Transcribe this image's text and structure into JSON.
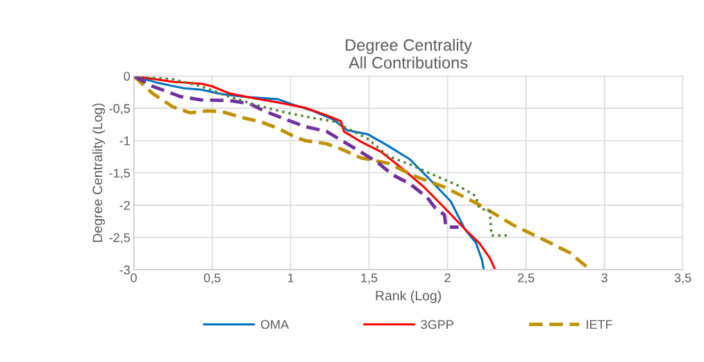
{
  "chart_data": {
    "type": "line",
    "title": "Degree Centrality\nAll Contributions",
    "xlabel": "Rank (Log)",
    "ylabel": "Degree Centrality (Log)",
    "xlim": [
      0,
      3.5
    ],
    "ylim": [
      -3,
      0
    ],
    "xticks": [
      0,
      {
        "value": 0.5,
        "label": "0,5"
      },
      1,
      {
        "value": 1.5,
        "label": "1,5"
      },
      2,
      {
        "value": 2.5,
        "label": "2,5"
      },
      3,
      {
        "value": 3.5,
        "label": "3,5"
      }
    ],
    "yticks": [
      {
        "value": -3,
        "label": "-3"
      },
      {
        "value": -2.5,
        "label": "-2,5"
      },
      {
        "value": -2,
        "label": "-2"
      },
      {
        "value": -1.5,
        "label": "-1,5"
      },
      {
        "value": -1,
        "label": "-1"
      },
      {
        "value": -0.5,
        "label": "-0,5"
      },
      0
    ],
    "grid": true,
    "legend": "bottom",
    "marker": "none",
    "series": [
      {
        "name": "OMA",
        "color": "#0070c0",
        "line_style": "solid",
        "x": [
          0,
          0.16,
          0.32,
          0.43,
          0.56,
          0.7,
          0.92,
          1.0,
          1.14,
          1.27,
          1.36,
          1.49,
          1.62,
          1.76,
          1.89,
          2.02,
          2.11,
          2.18,
          2.22,
          2.23
        ],
        "values": [
          0,
          -0.11,
          -0.19,
          -0.21,
          -0.28,
          -0.32,
          -0.36,
          -0.43,
          -0.54,
          -0.67,
          -0.84,
          -0.9,
          -1.08,
          -1.29,
          -1.61,
          -1.94,
          -2.37,
          -2.58,
          -2.85,
          -2.99
        ]
      },
      {
        "name": "3GPP",
        "color": "#ff0000",
        "line_style": "solid",
        "x": [
          0,
          0.25,
          0.43,
          0.5,
          0.61,
          0.78,
          0.92,
          1.09,
          1.23,
          1.32,
          1.34,
          1.45,
          1.58,
          1.71,
          1.85,
          1.98,
          2.11,
          2.2,
          2.27,
          2.3
        ],
        "values": [
          0,
          -0.09,
          -0.12,
          -0.16,
          -0.27,
          -0.35,
          -0.41,
          -0.49,
          -0.61,
          -0.7,
          -0.86,
          -1.02,
          -1.18,
          -1.43,
          -1.72,
          -2.04,
          -2.37,
          -2.58,
          -2.82,
          -2.98
        ]
      },
      {
        "name": "IETF",
        "color": "#bf9000",
        "line_style": "dashed",
        "x": [
          0,
          0.12,
          0.25,
          0.36,
          0.47,
          0.56,
          0.7,
          0.81,
          0.92,
          1.0,
          1.09,
          1.23,
          1.32,
          1.45,
          1.62,
          1.8,
          1.98,
          2.2,
          2.42,
          2.65,
          2.78,
          2.89
        ],
        "values": [
          0,
          -0.27,
          -0.48,
          -0.57,
          -0.54,
          -0.55,
          -0.65,
          -0.71,
          -0.81,
          -0.91,
          -1.0,
          -1.05,
          -1.13,
          -1.27,
          -1.35,
          -1.56,
          -1.72,
          -1.99,
          -2.31,
          -2.58,
          -2.74,
          -2.96
        ]
      },
      {
        "color": "#7030a0",
        "line_style": "dashed",
        "x": [
          0,
          0.12,
          0.3,
          0.43,
          0.61,
          0.74,
          0.83,
          1.0,
          1.09,
          1.23,
          1.34,
          1.45,
          1.56,
          1.65,
          1.76,
          1.87,
          1.92,
          1.98,
          1.99,
          2.07
        ],
        "values": [
          0,
          -0.16,
          -0.32,
          -0.37,
          -0.38,
          -0.43,
          -0.54,
          -0.7,
          -0.78,
          -0.86,
          -1.02,
          -1.18,
          -1.35,
          -1.53,
          -1.67,
          -1.88,
          -2.04,
          -2.15,
          -2.34,
          -2.34
        ]
      },
      {
        "color": "#548235",
        "line_style": "dotted",
        "x": [
          0,
          0.25,
          0.43,
          0.61,
          0.78,
          0.96,
          1.14,
          1.27,
          1.36,
          1.49,
          1.62,
          1.76,
          1.89,
          2.07,
          2.18,
          2.2,
          2.27,
          2.28,
          2.39
        ],
        "values": [
          0,
          -0.05,
          -0.16,
          -0.32,
          -0.45,
          -0.56,
          -0.65,
          -0.7,
          -0.81,
          -0.97,
          -1.24,
          -1.37,
          -1.51,
          -1.7,
          -1.86,
          -2.04,
          -2.1,
          -2.47,
          -2.47
        ]
      }
    ]
  }
}
